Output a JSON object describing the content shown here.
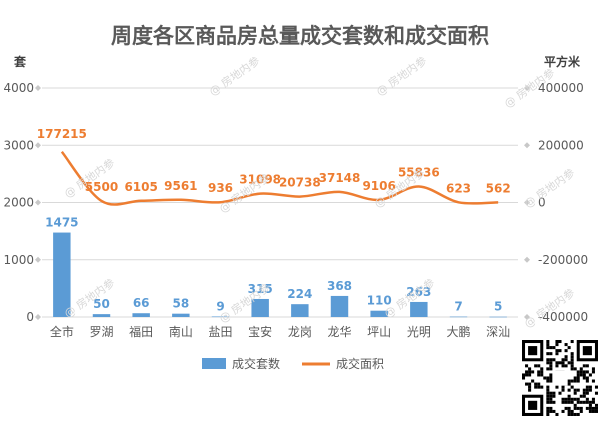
{
  "title": "周度各区商品房总量成交套数和成交面积",
  "watermark_text": "@ 房地内参",
  "qr_code": {
    "name": "qr-code"
  },
  "colors": {
    "bar": "#5b9bd5",
    "line": "#ed7d31",
    "bar_label": "#5b9bd5",
    "line_label": "#ed7d31",
    "axis_text": "#595959",
    "grid": "#d9d9d9"
  },
  "chart_data": {
    "type": "bar",
    "title": "周度各区商品房总量成交套数和成交面积",
    "categories": [
      "全市",
      "罗湖",
      "福田",
      "南山",
      "盐田",
      "宝安",
      "龙岗",
      "龙华",
      "坪山",
      "光明",
      "大鹏",
      "深汕"
    ],
    "y_left": {
      "label": "套",
      "min": 0,
      "max": 4000,
      "ticks": [
        0,
        1000,
        2000,
        3000,
        4000
      ],
      "tick_labels": [
        "0",
        "1000",
        "2000",
        "3000",
        "4000"
      ]
    },
    "y_right": {
      "label": "平方米",
      "min": -400000,
      "max": 400000,
      "ticks": [
        -400000,
        -200000,
        0,
        200000,
        400000
      ],
      "tick_labels": [
        "-400000",
        "-200000",
        "0",
        "200000",
        "400000"
      ]
    },
    "grid": true,
    "legend_position": "bottom",
    "series": [
      {
        "name": "成交套数",
        "type": "bar",
        "axis": "left",
        "values": [
          1475,
          50,
          66,
          58,
          9,
          315,
          224,
          368,
          110,
          263,
          7,
          5
        ],
        "labels": [
          "1475",
          "50",
          "66",
          "58",
          "9",
          "315",
          "224",
          "368",
          "110",
          "263",
          "7",
          "5"
        ]
      },
      {
        "name": "成交面积",
        "type": "line",
        "axis": "right",
        "values": [
          177215,
          5500,
          6105,
          9561,
          936,
          31098,
          20738,
          37148,
          9106,
          55836,
          623,
          562
        ],
        "labels": [
          "177215",
          "5500",
          "6105",
          "9561",
          "936",
          "31098",
          "20738",
          "37148",
          "9106",
          "55836",
          "623",
          "562"
        ]
      }
    ]
  }
}
